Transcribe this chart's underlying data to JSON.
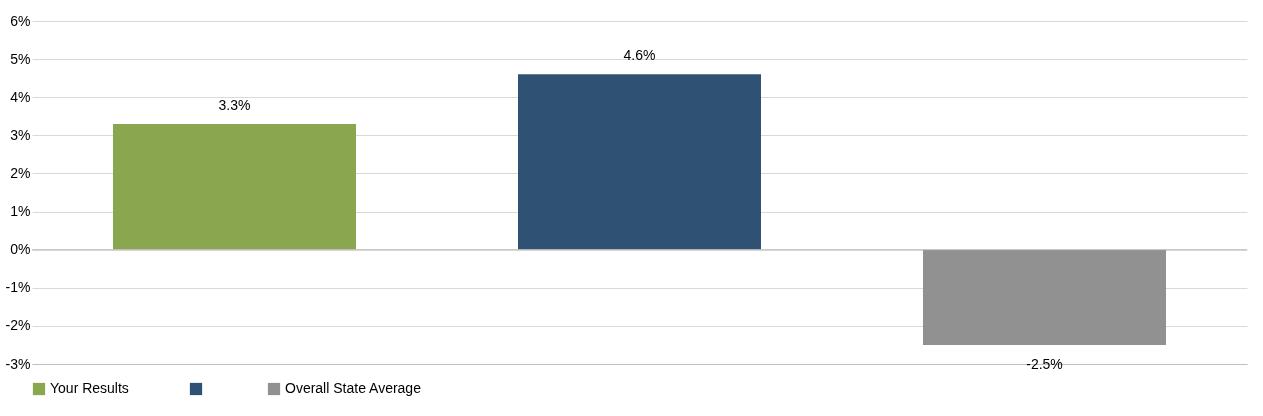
{
  "chart_data": {
    "type": "bar",
    "categories": [
      null,
      null,
      null
    ],
    "series": [
      {
        "name": "Your Results",
        "color": "#8aa64e",
        "values": [
          3.3,
          null,
          null
        ],
        "value_labels": [
          "3.3%",
          null,
          null
        ]
      },
      {
        "color": "#2f5274",
        "values": [
          null,
          4.6,
          null
        ],
        "value_labels": [
          null,
          "4.6%",
          null
        ]
      },
      {
        "name": "Overall State Average",
        "color": "#919191",
        "values": [
          null,
          null,
          -2.5
        ],
        "value_labels": [
          null,
          null,
          "-2.5%"
        ]
      }
    ],
    "ylim": [
      -3,
      6
    ],
    "yticks": [
      {
        "value": -3,
        "label": "-3%"
      },
      {
        "value": -2,
        "label": "-2%"
      },
      {
        "value": -1,
        "label": "-1%"
      },
      {
        "value": 0,
        "label": "0%"
      },
      {
        "value": 1,
        "label": "1%"
      },
      {
        "value": 2,
        "label": "2%"
      },
      {
        "value": 3,
        "label": "3%"
      },
      {
        "value": 4,
        "label": "4%"
      },
      {
        "value": 5,
        "label": "5%"
      },
      {
        "value": 6,
        "label": "6%"
      }
    ],
    "grid": "y",
    "legend": "bottom"
  }
}
